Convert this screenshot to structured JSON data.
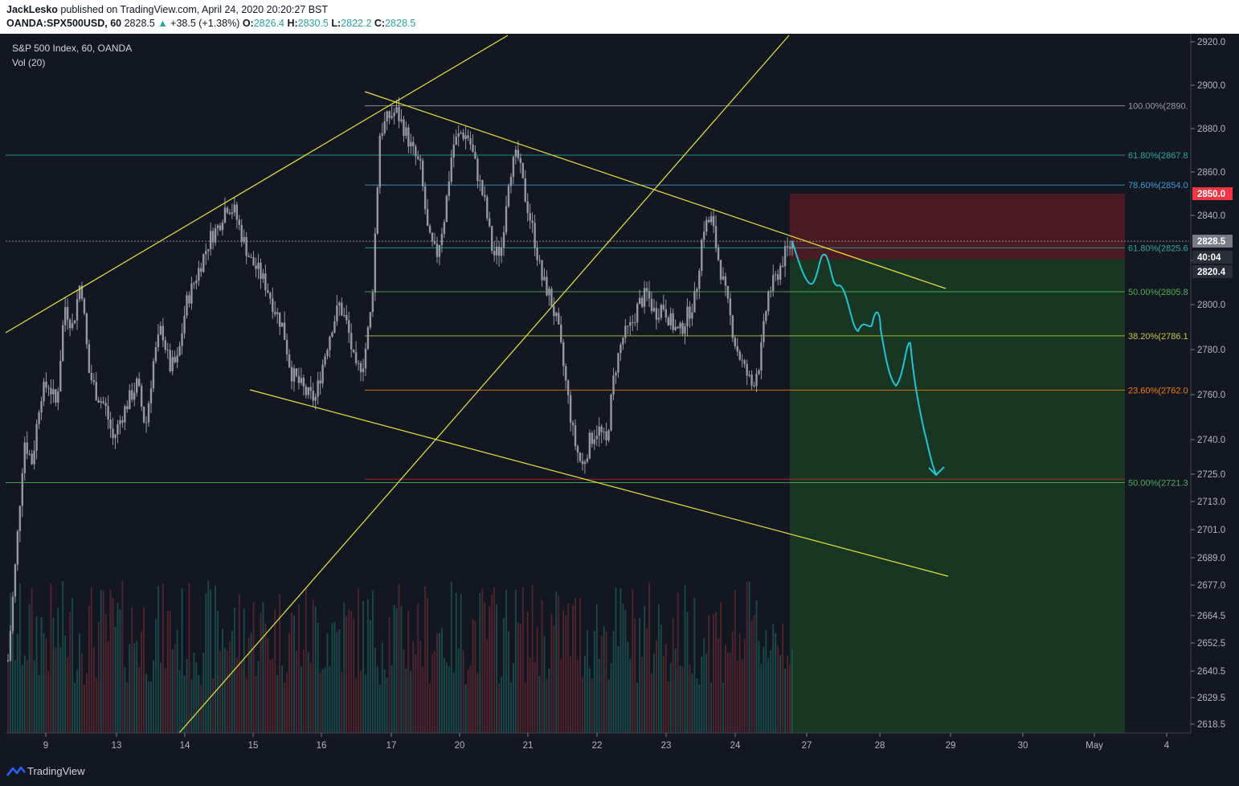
{
  "header": {
    "author": "JackLesko",
    "published": "published on TradingView.com, April 24, 2020 20:20:27 BST",
    "symbol": "OANDA:SPX500USD, 60",
    "last": "2828.5",
    "change": "+38.5 (+1.38%)",
    "open_label": "O:",
    "open": "2826.4",
    "high_label": "H:",
    "high": "2830.5",
    "low_label": "L:",
    "low": "2822.2",
    "close_label": "C:",
    "close": "2828.5",
    "up_arrow": "▲"
  },
  "legend": {
    "title": "S&P 500 Index, 60, OANDA",
    "volume": "Vol (20)"
  },
  "footer": {
    "brand": "TradingView"
  },
  "colors": {
    "background": "#131722",
    "candle": "#9598a1",
    "trendline": "#e8e337",
    "forecast": "#22c3d6",
    "stop_zone": "#4a1b22",
    "target_zone": "#183722",
    "stop_badge": "#f23645"
  },
  "chart_data": {
    "type": "candlestick",
    "title": "S&P 500 Index, 60, OANDA",
    "ylim": [
      2613,
      2925
    ],
    "y_ticks": [
      "2920.0",
      "2900.0",
      "2880.0",
      "2860.0",
      "2840.0",
      "2820.0",
      "2800.0",
      "2780.0",
      "2760.0",
      "2740.0",
      "2725.0",
      "2713.0",
      "2701.0",
      "2689.0",
      "2677.0",
      "2664.5",
      "2652.5",
      "2640.5",
      "2629.5",
      "2618.5"
    ],
    "x_ticks": [
      "9",
      "13",
      "14",
      "15",
      "16",
      "17",
      "20",
      "21",
      "22",
      "23",
      "24",
      "27",
      "28",
      "29",
      "30",
      "May",
      "4"
    ],
    "price_markers": [
      {
        "label": "2850.0",
        "value": 2850.0,
        "kind": "stop"
      },
      {
        "label": "2828.5",
        "value": 2828.5,
        "kind": "last"
      },
      {
        "label": "40:04",
        "value": 2824.0,
        "kind": "timer"
      },
      {
        "label": "2820.4",
        "value": 2820.4,
        "kind": "entry"
      }
    ],
    "fib_levels": [
      {
        "label": "100.00%(2890.",
        "value": 2890.5,
        "color": "#9a9ca3"
      },
      {
        "label": "61.80%(2867.8",
        "value": 2867.8,
        "color": "#26a69a"
      },
      {
        "label": "78.60%(2854.0",
        "value": 2854.0,
        "color": "#3a9bd6"
      },
      {
        "label": "61.80%(2825.6",
        "value": 2825.6,
        "color": "#26a69a"
      },
      {
        "label": "50.00%(2805.8",
        "value": 2805.8,
        "color": "#4caf50"
      },
      {
        "label": "38.20%(2786.1",
        "value": 2786.1,
        "color": "#c0ca33"
      },
      {
        "label": "23.60%(2762.0",
        "value": 2762.0,
        "color": "#f57c00"
      },
      {
        "label": "50.00%(2721.3",
        "value": 2721.3,
        "color": "#4caf50"
      }
    ],
    "ohlc_path": [
      2645,
      2690,
      2740,
      2730,
      2760,
      2765,
      2755,
      2800,
      2790,
      2812,
      2770,
      2760,
      2755,
      2740,
      2750,
      2758,
      2765,
      2745,
      2775,
      2790,
      2772,
      2775,
      2800,
      2810,
      2820,
      2830,
      2835,
      2845,
      2842,
      2830,
      2820,
      2815,
      2808,
      2798,
      2790,
      2770,
      2765,
      2760,
      2758,
      2775,
      2790,
      2800,
      2790,
      2770,
      2775,
      2800,
      2878,
      2885,
      2888,
      2880,
      2870,
      2862,
      2830,
      2822,
      2840,
      2872,
      2878,
      2876,
      2860,
      2845,
      2822,
      2825,
      2860,
      2868,
      2848,
      2832,
      2812,
      2804,
      2790,
      2765,
      2740,
      2728,
      2740,
      2745,
      2738,
      2770,
      2785,
      2790,
      2800,
      2805,
      2796,
      2800,
      2792,
      2787,
      2795,
      2803,
      2835,
      2838,
      2818,
      2800,
      2782,
      2772,
      2764,
      2775,
      2805,
      2812,
      2822,
      2828
    ]
  }
}
